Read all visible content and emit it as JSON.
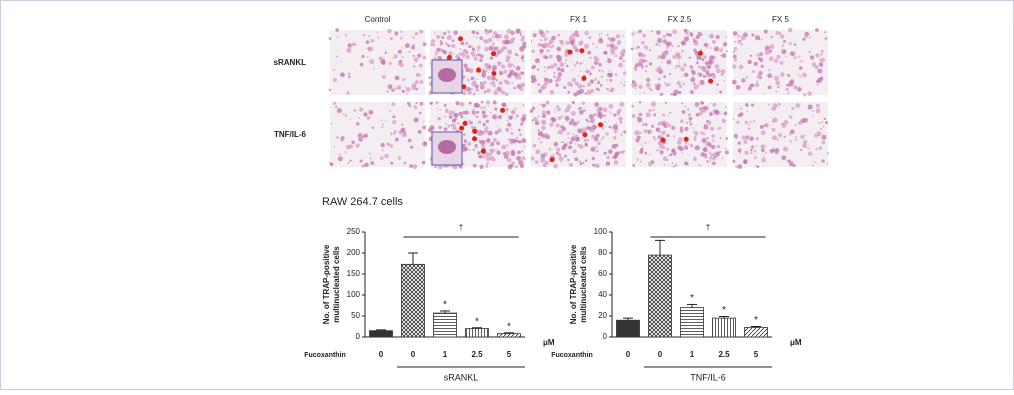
{
  "figure": {
    "columns": [
      "Control",
      "FX 0",
      "FX 1",
      "FX 2.5",
      "FX 5"
    ],
    "rows": [
      "sRANKL",
      "TNF/IL-6"
    ],
    "subtitle": "RAW 264.7 cells"
  },
  "chart_data": [
    {
      "type": "bar",
      "ylabel": [
        "No. of TRAP-positive",
        "multinucleated cells"
      ],
      "treatment_label": "Fucoxanthin",
      "unit": "μM",
      "group_label": "sRANKL",
      "categories": [
        "0",
        "0",
        "1",
        "2.5",
        "5"
      ],
      "values": [
        15,
        173,
        57,
        20,
        8
      ],
      "errors": [
        2,
        27,
        5,
        2,
        2
      ],
      "patterns": [
        "solid",
        "crosshatch",
        "horizontal",
        "vertical",
        "diagonal"
      ],
      "significance": [
        null,
        null,
        "*",
        "*",
        "*"
      ],
      "bracket_label": "†",
      "ylim": [
        0,
        250
      ],
      "yticks": [
        0,
        50,
        100,
        150,
        200,
        250
      ]
    },
    {
      "type": "bar",
      "ylabel": [
        "No. of TRAP-positive",
        "multinucleated cells"
      ],
      "treatment_label": "Fucoxanthin",
      "unit": "μM",
      "group_label": "TNF/IL-6",
      "categories": [
        "0",
        "0",
        "1",
        "2.5",
        "5"
      ],
      "values": [
        16,
        78,
        28,
        18,
        9
      ],
      "errors": [
        2,
        14,
        3,
        1.5,
        1
      ],
      "patterns": [
        "solid",
        "crosshatch",
        "horizontal",
        "vertical",
        "diagonal"
      ],
      "significance": [
        null,
        null,
        "*",
        "*",
        "*"
      ],
      "bracket_label": "†",
      "ylim": [
        0,
        100
      ],
      "yticks": [
        0,
        20,
        40,
        60,
        80,
        100
      ]
    }
  ]
}
